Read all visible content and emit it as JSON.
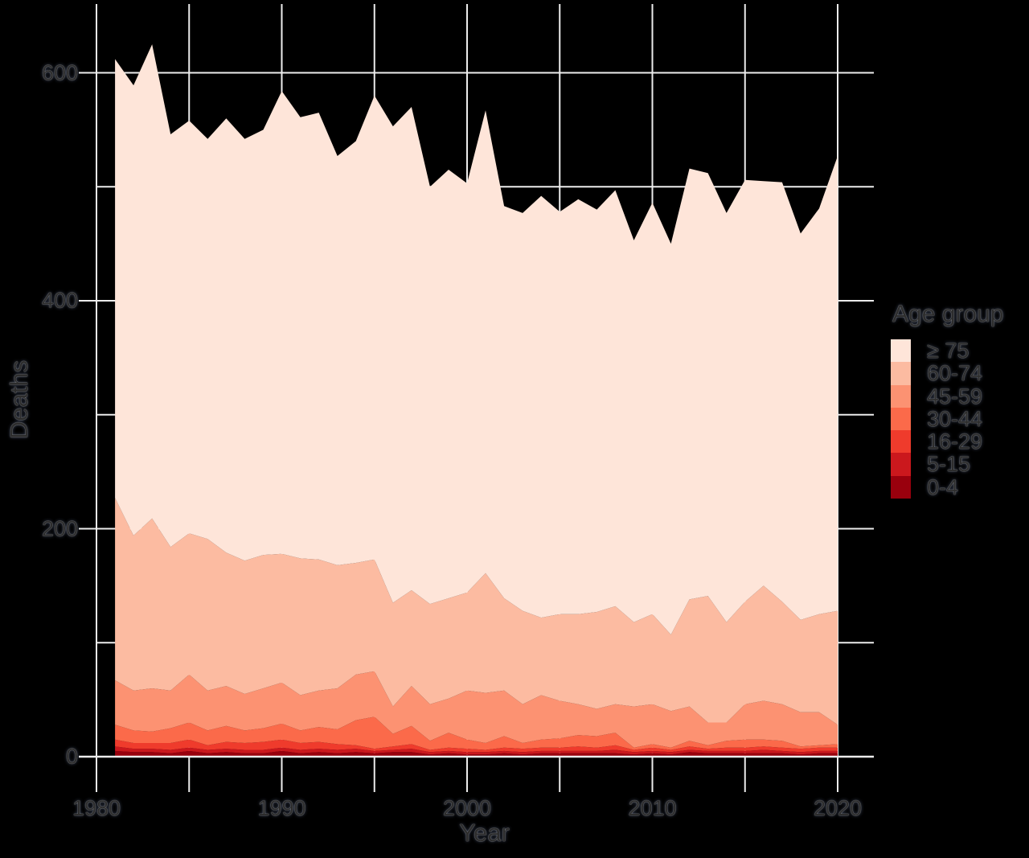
{
  "colors": {
    "background": "#000000",
    "grid": "#ECECEC",
    "axis_line": "#ECECEC",
    "text": "#2d2d2d"
  },
  "axes": {
    "x": {
      "title": "Year",
      "range": [
        1980,
        2020
      ],
      "grid_break_years": [
        1980,
        1985,
        1990,
        1995,
        2000,
        2005,
        2010,
        2015,
        2020
      ],
      "tick_labels": [
        {
          "value": 1980,
          "label": "1980"
        },
        {
          "value": 1990,
          "label": "1990"
        },
        {
          "value": 2000,
          "label": "2000"
        },
        {
          "value": 2010,
          "label": "2010"
        },
        {
          "value": 2020,
          "label": "2020"
        }
      ]
    },
    "y": {
      "title": "Deaths",
      "range": [
        0,
        630
      ],
      "major_break_values": [
        0,
        200,
        400,
        600
      ],
      "minor_break_values": [
        100,
        300,
        500
      ],
      "tick_labels": [
        {
          "value": 0,
          "label": "0"
        },
        {
          "value": 200,
          "label": "200"
        },
        {
          "value": 400,
          "label": "400"
        },
        {
          "value": 600,
          "label": "600"
        }
      ]
    }
  },
  "legend": {
    "title": "Age group",
    "items": [
      {
        "label": "≥ 75",
        "color": "#FEE5D9"
      },
      {
        "label": "60-74",
        "color": "#FCBBA1"
      },
      {
        "label": "45-59",
        "color": "#FC9272"
      },
      {
        "label": "30-44",
        "color": "#FB6A4A"
      },
      {
        "label": "16-29",
        "color": "#EF3B2C"
      },
      {
        "label": "5-15",
        "color": "#CB181D"
      },
      {
        "label": "0-4",
        "color": "#99000D"
      }
    ]
  },
  "chart_data": {
    "type": "area",
    "stacked": true,
    "title": "",
    "xlabel": "Year",
    "ylabel": "Deaths",
    "xlim": [
      1980,
      2020
    ],
    "ylim": [
      0,
      630
    ],
    "grid": true,
    "legend_position": "right",
    "x": [
      1981,
      1982,
      1983,
      1984,
      1985,
      1986,
      1987,
      1988,
      1989,
      1990,
      1991,
      1992,
      1993,
      1994,
      1995,
      1996,
      1997,
      1998,
      1999,
      2000,
      2001,
      2002,
      2003,
      2004,
      2005,
      2006,
      2007,
      2008,
      2009,
      2010,
      2011,
      2012,
      2013,
      2014,
      2015,
      2016,
      2017,
      2018,
      2019,
      2020
    ],
    "series": [
      {
        "name": "0-4",
        "color": "#99000D",
        "values": [
          5,
          4,
          4,
          3,
          5,
          3,
          4,
          3,
          3,
          5,
          3,
          4,
          3,
          4,
          3,
          4,
          4,
          2,
          3,
          2,
          2,
          3,
          2,
          3,
          3,
          3,
          3,
          3,
          2,
          3,
          2,
          4,
          3,
          3,
          3,
          3,
          3,
          2,
          3,
          3
        ]
      },
      {
        "name": "5-15",
        "color": "#CB181D",
        "values": [
          4,
          3,
          3,
          3,
          3,
          3,
          3,
          3,
          3,
          3,
          3,
          3,
          3,
          3,
          2,
          2,
          3,
          2,
          2,
          2,
          2,
          2,
          2,
          2,
          2,
          2,
          2,
          3,
          2,
          2,
          2,
          2,
          2,
          2,
          2,
          3,
          2,
          2,
          2,
          2
        ]
      },
      {
        "name": "16-29",
        "color": "#EF3B2C",
        "values": [
          6,
          5,
          5,
          6,
          7,
          4,
          6,
          6,
          7,
          7,
          6,
          6,
          5,
          3,
          2,
          3,
          4,
          2,
          3,
          3,
          2,
          3,
          3,
          3,
          3,
          4,
          3,
          4,
          2,
          3,
          2,
          3,
          2,
          3,
          3,
          3,
          3,
          3,
          3,
          3
        ]
      },
      {
        "name": "30-44",
        "color": "#FB6A4A",
        "values": [
          13,
          11,
          10,
          13,
          15,
          13,
          14,
          11,
          12,
          14,
          11,
          13,
          13,
          22,
          28,
          11,
          16,
          8,
          13,
          8,
          6,
          10,
          5,
          7,
          8,
          10,
          10,
          11,
          2,
          3,
          2,
          5,
          3,
          6,
          7,
          6,
          6,
          2,
          2,
          3
        ]
      },
      {
        "name": "45-59",
        "color": "#FC9272",
        "values": [
          39,
          35,
          38,
          33,
          42,
          35,
          35,
          32,
          35,
          36,
          31,
          32,
          36,
          40,
          40,
          24,
          35,
          32,
          30,
          43,
          44,
          40,
          34,
          39,
          33,
          27,
          24,
          25,
          36,
          35,
          32,
          30,
          20,
          16,
          31,
          34,
          32,
          30,
          29,
          17
        ]
      },
      {
        "name": "60-74",
        "color": "#FCBBA1",
        "values": [
          160,
          136,
          149,
          126,
          124,
          133,
          117,
          117,
          117,
          113,
          120,
          115,
          108,
          98,
          98,
          91,
          84,
          88,
          88,
          86,
          105,
          81,
          82,
          68,
          76,
          79,
          85,
          86,
          74,
          79,
          67,
          94,
          111,
          88,
          90,
          101,
          90,
          81,
          86,
          100
        ]
      },
      {
        "name": "≥ 75",
        "color": "#FEE5D9",
        "values": [
          385,
          395,
          416,
          362,
          362,
          351,
          381,
          370,
          373,
          406,
          387,
          392,
          359,
          370,
          407,
          418,
          424,
          366,
          376,
          359,
          406,
          344,
          349,
          370,
          353,
          364,
          353,
          365,
          335,
          361,
          343,
          378,
          371,
          359,
          370,
          355,
          368,
          339,
          356,
          399
        ]
      }
    ]
  }
}
